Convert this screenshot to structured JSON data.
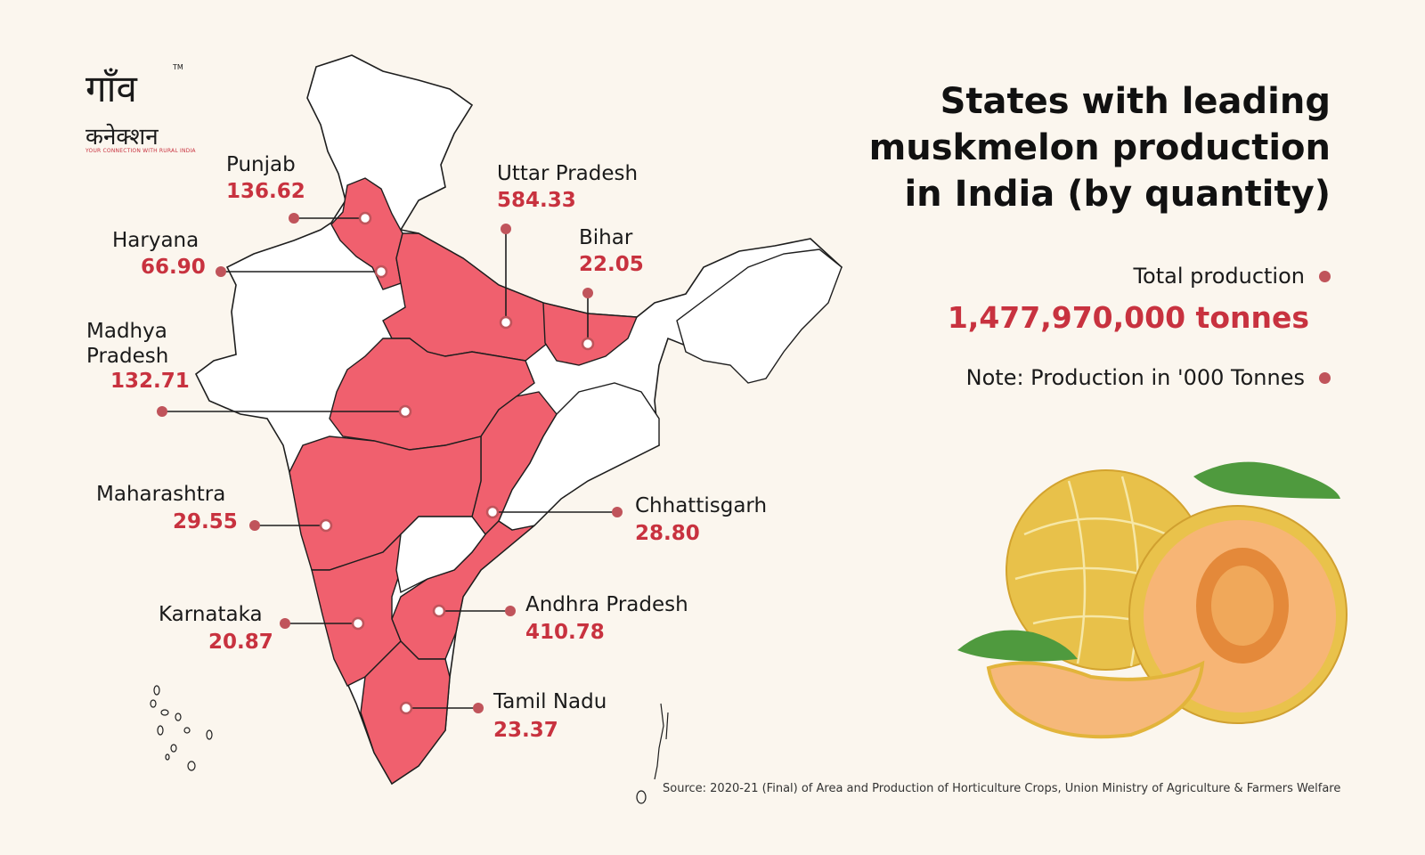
{
  "title_lines": [
    "States with leading",
    "muskmelon production",
    "in India (by quantity)"
  ],
  "total_label": "Total production",
  "total_value": "1,477,970,000 tonnes",
  "note": "Note: Production in '000 Tonnes",
  "source": "Source: 2020-21 (Final) of Area and Production of Horticulture Crops, Union Ministry of Agriculture & Farmers Welfare",
  "logo": {
    "text": "गाँव कनेक्शन",
    "tagline": "YOUR CONNECTION WITH RURAL INDIA",
    "tm": "TM"
  },
  "states": [
    {
      "name": "Punjab",
      "value": "136.62"
    },
    {
      "name": "Haryana",
      "value": "66.90"
    },
    {
      "name": "Uttar Pradesh",
      "value": "584.33"
    },
    {
      "name": "Bihar",
      "value": "22.05"
    },
    {
      "name": "Madhya Pradesh",
      "value": "132.71"
    },
    {
      "name": "Maharashtra",
      "value": "29.55"
    },
    {
      "name": "Chhattisgarh",
      "value": "28.80"
    },
    {
      "name": "Andhra Pradesh",
      "value": "410.78"
    },
    {
      "name": "Karnataka",
      "value": "20.87"
    },
    {
      "name": "Tamil Nadu",
      "value": "23.37"
    }
  ],
  "colors": {
    "highlight": "#f0606e",
    "accent": "#c8323f",
    "dot": "#c0545b",
    "outline": "#1e1e1e",
    "background": "#fbf6ee"
  }
}
